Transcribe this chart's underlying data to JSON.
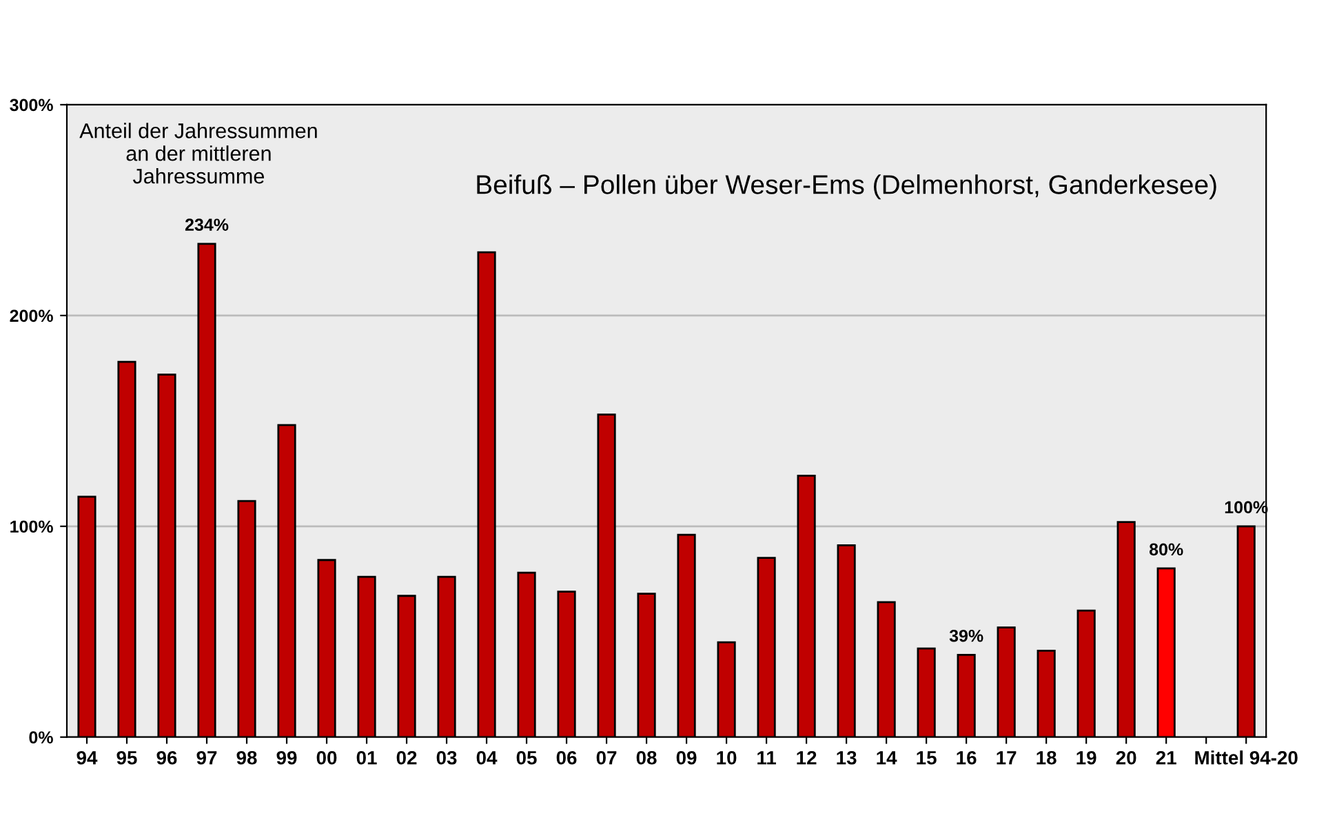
{
  "chart_data": {
    "type": "bar",
    "title": "Beifuß – Pollen über Weser-Ems (Delmenhorst, Ganderkesee)",
    "annotations": [
      "Anteil der Jahressummen\nan der mittleren\nJahressumme"
    ],
    "categories": [
      "94",
      "95",
      "96",
      "97",
      "98",
      "99",
      "00",
      "01",
      "02",
      "03",
      "04",
      "05",
      "06",
      "07",
      "08",
      "09",
      "10",
      "11",
      "12",
      "13",
      "14",
      "15",
      "16",
      "17",
      "18",
      "19",
      "20",
      "21",
      null,
      "Mittel 94-20"
    ],
    "values": [
      114,
      178,
      172,
      234,
      112,
      148,
      84,
      76,
      67,
      76,
      230,
      78,
      69,
      153,
      68,
      96,
      45,
      85,
      124,
      91,
      64,
      42,
      39,
      52,
      41,
      60,
      102,
      80,
      null,
      100
    ],
    "colors": [
      "#c00000",
      "#c00000",
      "#c00000",
      "#c00000",
      "#c00000",
      "#c00000",
      "#c00000",
      "#c00000",
      "#c00000",
      "#c00000",
      "#c00000",
      "#c00000",
      "#c00000",
      "#c00000",
      "#c00000",
      "#c00000",
      "#c00000",
      "#c00000",
      "#c00000",
      "#c00000",
      "#c00000",
      "#c00000",
      "#c00000",
      "#c00000",
      "#c00000",
      "#c00000",
      "#c00000",
      "#ff0000",
      "#c00000",
      "#c00000"
    ],
    "value_labels": [
      null,
      null,
      null,
      "234%",
      null,
      null,
      null,
      null,
      null,
      null,
      null,
      null,
      null,
      null,
      null,
      null,
      null,
      null,
      null,
      null,
      null,
      null,
      "39%",
      null,
      null,
      null,
      null,
      "80%",
      null,
      "100%"
    ],
    "ylim": [
      0,
      300
    ],
    "yticks": [
      {
        "value": 0,
        "label": "0%"
      },
      {
        "value": 100,
        "label": "100%"
      },
      {
        "value": 200,
        "label": "200%"
      },
      {
        "value": 300,
        "label": "300%"
      }
    ],
    "grid": "y"
  }
}
